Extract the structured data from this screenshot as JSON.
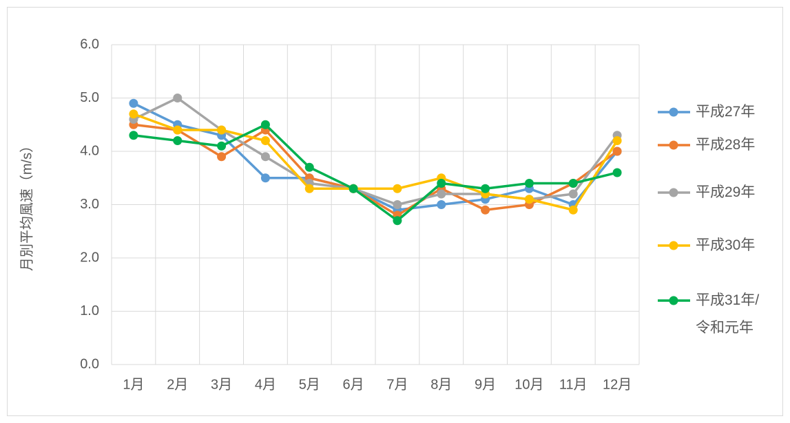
{
  "chart_data": {
    "type": "line",
    "y_label": "月別平均風速（m/s）",
    "categories": [
      "1月",
      "2月",
      "3月",
      "4月",
      "5月",
      "6月",
      "7月",
      "8月",
      "9月",
      "10月",
      "11月",
      "12月"
    ],
    "ylim": [
      0,
      6
    ],
    "yticks": [
      {
        "value": 0,
        "label": "0.0"
      },
      {
        "value": 1,
        "label": "1.0"
      },
      {
        "value": 2,
        "label": "2.0"
      },
      {
        "value": 3,
        "label": "3.0"
      },
      {
        "value": 4,
        "label": "4.0"
      },
      {
        "value": 5,
        "label": "5.0"
      },
      {
        "value": 6,
        "label": "6.0"
      }
    ],
    "grid": true,
    "legend": "right",
    "series": [
      {
        "name": "平成27年",
        "color": "#5b9bd5",
        "values": [
          4.9,
          4.5,
          4.3,
          3.5,
          3.5,
          3.3,
          2.9,
          3.0,
          3.1,
          3.3,
          3.0,
          4.0
        ]
      },
      {
        "name": "平成28年",
        "color": "#ed7d31",
        "values": [
          4.5,
          4.4,
          3.9,
          4.4,
          3.5,
          3.3,
          2.8,
          3.3,
          2.9,
          3.0,
          3.4,
          4.0
        ]
      },
      {
        "name": "平成29年",
        "color": "#a5a5a5",
        "values": [
          4.6,
          5.0,
          4.4,
          3.9,
          3.4,
          3.3,
          3.0,
          3.2,
          3.2,
          3.1,
          3.2,
          4.3
        ]
      },
      {
        "name": "平成30年",
        "color": "#ffc000",
        "values": [
          4.7,
          4.4,
          4.4,
          4.2,
          3.3,
          3.3,
          3.3,
          3.5,
          3.2,
          3.1,
          2.9,
          4.2
        ]
      },
      {
        "name": "平成31年/令和元年",
        "color": "#00b050",
        "values": [
          4.3,
          4.2,
          4.1,
          4.5,
          3.7,
          3.3,
          2.7,
          3.4,
          3.3,
          3.4,
          3.4,
          3.6
        ]
      }
    ]
  }
}
